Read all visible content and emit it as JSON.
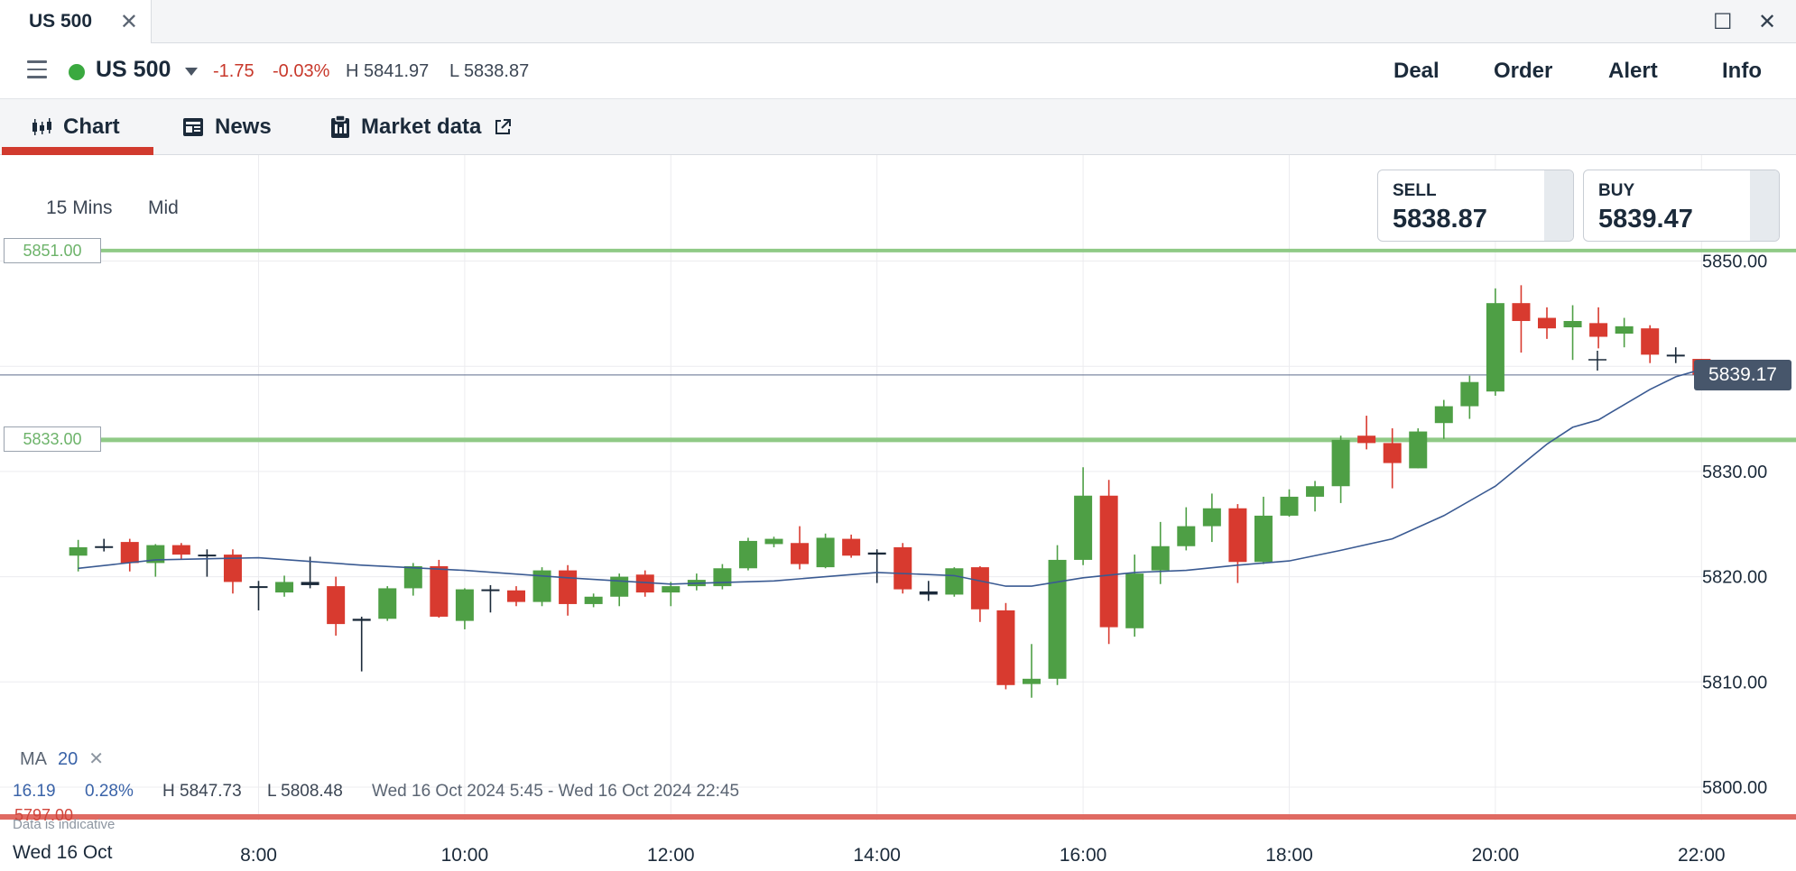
{
  "tab": {
    "title": "US 500",
    "close": "✕"
  },
  "window": {
    "maximize": "☐",
    "close": "✕"
  },
  "instrument": {
    "name": "US 500",
    "change": "-1.75",
    "change_pct": "-0.03%",
    "high": "H 5841.97",
    "low": "L 5838.87"
  },
  "actions": [
    "Deal",
    "Order",
    "Alert",
    "Info"
  ],
  "subnav": [
    {
      "label": "Chart",
      "icon": "candlestick-icon"
    },
    {
      "label": "News",
      "icon": "newspaper-icon"
    },
    {
      "label": "Market data",
      "icon": "clipboard-icon",
      "external": "external-link-icon"
    }
  ],
  "chart_controls": {
    "timeframe": "15 Mins",
    "price_type": "Mid"
  },
  "quotes": {
    "sell": {
      "label": "SELL",
      "value": "5838.87"
    },
    "buy": {
      "label": "BUY",
      "value": "5839.47"
    }
  },
  "levels": {
    "upper": "5851.00",
    "middle": "5833.00",
    "lower": "5797.00",
    "current": "5839.17"
  },
  "indicator": {
    "name": "MA",
    "period": "20",
    "remove": "✕"
  },
  "stats": {
    "points": "16.19",
    "pct": "0.28%",
    "high": "H 5847.73",
    "low": "L 5808.48",
    "range": "Wed 16 Oct 2024 5:45 - Wed 16 Oct 2024 22:45"
  },
  "disclaimer": "Data is indicative",
  "date_label": "Wed 16 Oct",
  "colors": {
    "up": "#4e9f45",
    "down": "#d83a2f",
    "ma": "#3a5a92",
    "level": "#8fca86",
    "low_level": "#e06a62",
    "accent": "#d13a2e"
  },
  "chart_data": {
    "type": "candlestick",
    "interval": "15 Mins",
    "y_ticks": [
      "5850.00",
      "5830.00",
      "5820.00",
      "5810.00",
      "5800.00"
    ],
    "y_range": [
      5795,
      5856
    ],
    "x_ticks": [
      "8:00",
      "10:00",
      "12:00",
      "14:00",
      "16:00",
      "18:00",
      "20:00",
      "22:00"
    ],
    "x_range": [
      6.25,
      23.0
    ],
    "candles": [
      {
        "t": 6.25,
        "o": 5822.0,
        "h": 5823.5,
        "l": 5820.5,
        "c": 5822.8
      },
      {
        "t": 6.5,
        "o": 5822.8,
        "h": 5823.6,
        "l": 5822.4,
        "c": 5822.9
      },
      {
        "t": 6.75,
        "o": 5823.3,
        "h": 5823.6,
        "l": 5820.5,
        "c": 5821.3
      },
      {
        "t": 7.0,
        "o": 5821.3,
        "h": 5823.1,
        "l": 5820.0,
        "c": 5823.0
      },
      {
        "t": 7.25,
        "o": 5823.0,
        "h": 5823.2,
        "l": 5821.7,
        "c": 5822.1
      },
      {
        "t": 7.5,
        "o": 5822.1,
        "h": 5822.6,
        "l": 5820.0,
        "c": 5822.1
      },
      {
        "t": 7.75,
        "o": 5822.1,
        "h": 5822.6,
        "l": 5818.4,
        "c": 5819.5
      },
      {
        "t": 8.0,
        "o": 5819.1,
        "h": 5819.6,
        "l": 5816.8,
        "c": 5819.1
      },
      {
        "t": 8.25,
        "o": 5818.5,
        "h": 5820.1,
        "l": 5818.1,
        "c": 5819.5
      },
      {
        "t": 8.5,
        "o": 5819.5,
        "h": 5821.9,
        "l": 5818.9,
        "c": 5819.2
      },
      {
        "t": 8.75,
        "o": 5819.1,
        "h": 5820.0,
        "l": 5814.4,
        "c": 5815.5
      },
      {
        "t": 9.0,
        "o": 5815.8,
        "h": 5816.2,
        "l": 5811.0,
        "c": 5816.0
      },
      {
        "t": 9.25,
        "o": 5816.0,
        "h": 5819.1,
        "l": 5815.8,
        "c": 5818.9
      },
      {
        "t": 9.5,
        "o": 5818.9,
        "h": 5821.3,
        "l": 5818.2,
        "c": 5821.0
      },
      {
        "t": 9.75,
        "o": 5821.0,
        "h": 5821.6,
        "l": 5816.1,
        "c": 5816.2
      },
      {
        "t": 10.0,
        "o": 5815.8,
        "h": 5818.9,
        "l": 5815.0,
        "c": 5818.8
      },
      {
        "t": 10.25,
        "o": 5818.8,
        "h": 5819.2,
        "l": 5816.6,
        "c": 5818.7
      },
      {
        "t": 10.5,
        "o": 5818.7,
        "h": 5819.1,
        "l": 5817.2,
        "c": 5817.6
      },
      {
        "t": 10.75,
        "o": 5817.6,
        "h": 5820.9,
        "l": 5817.2,
        "c": 5820.6
      },
      {
        "t": 11.0,
        "o": 5820.6,
        "h": 5821.1,
        "l": 5816.3,
        "c": 5817.4
      },
      {
        "t": 11.25,
        "o": 5817.4,
        "h": 5818.4,
        "l": 5817.1,
        "c": 5818.1
      },
      {
        "t": 11.5,
        "o": 5818.1,
        "h": 5820.3,
        "l": 5817.2,
        "c": 5820.0
      },
      {
        "t": 11.75,
        "o": 5820.2,
        "h": 5820.6,
        "l": 5818.1,
        "c": 5818.5
      },
      {
        "t": 12.0,
        "o": 5818.5,
        "h": 5819.5,
        "l": 5817.2,
        "c": 5819.1
      },
      {
        "t": 12.25,
        "o": 5819.1,
        "h": 5820.3,
        "l": 5818.7,
        "c": 5819.7
      },
      {
        "t": 12.5,
        "o": 5819.1,
        "h": 5821.2,
        "l": 5818.8,
        "c": 5820.8
      },
      {
        "t": 12.75,
        "o": 5820.8,
        "h": 5823.7,
        "l": 5820.6,
        "c": 5823.4
      },
      {
        "t": 13.0,
        "o": 5823.1,
        "h": 5823.8,
        "l": 5822.8,
        "c": 5823.6
      },
      {
        "t": 13.25,
        "o": 5823.2,
        "h": 5824.8,
        "l": 5820.7,
        "c": 5821.2
      },
      {
        "t": 13.5,
        "o": 5820.9,
        "h": 5824.1,
        "l": 5820.8,
        "c": 5823.7
      },
      {
        "t": 13.75,
        "o": 5823.6,
        "h": 5824.0,
        "l": 5821.8,
        "c": 5822.0
      },
      {
        "t": 14.0,
        "o": 5822.1,
        "h": 5822.6,
        "l": 5819.4,
        "c": 5822.3
      },
      {
        "t": 14.25,
        "o": 5822.8,
        "h": 5823.2,
        "l": 5818.4,
        "c": 5818.8
      },
      {
        "t": 14.5,
        "o": 5818.6,
        "h": 5819.6,
        "l": 5817.7,
        "c": 5818.3
      },
      {
        "t": 14.75,
        "o": 5818.3,
        "h": 5820.9,
        "l": 5818.1,
        "c": 5820.8
      },
      {
        "t": 15.0,
        "o": 5820.9,
        "h": 5821.0,
        "l": 5815.7,
        "c": 5816.9
      },
      {
        "t": 15.25,
        "o": 5816.8,
        "h": 5817.5,
        "l": 5809.3,
        "c": 5809.7
      },
      {
        "t": 15.5,
        "o": 5809.8,
        "h": 5813.6,
        "l": 5808.5,
        "c": 5810.3
      },
      {
        "t": 15.75,
        "o": 5810.3,
        "h": 5823.0,
        "l": 5809.7,
        "c": 5821.6
      },
      {
        "t": 16.0,
        "o": 5821.6,
        "h": 5830.4,
        "l": 5821.1,
        "c": 5827.7
      },
      {
        "t": 16.25,
        "o": 5827.7,
        "h": 5829.2,
        "l": 5813.6,
        "c": 5815.2
      },
      {
        "t": 16.5,
        "o": 5815.1,
        "h": 5822.1,
        "l": 5814.3,
        "c": 5820.3
      },
      {
        "t": 16.75,
        "o": 5820.6,
        "h": 5825.2,
        "l": 5819.3,
        "c": 5822.9
      },
      {
        "t": 17.0,
        "o": 5822.9,
        "h": 5826.6,
        "l": 5822.5,
        "c": 5824.8
      },
      {
        "t": 17.25,
        "o": 5824.8,
        "h": 5827.9,
        "l": 5823.3,
        "c": 5826.5
      },
      {
        "t": 17.5,
        "o": 5826.5,
        "h": 5826.9,
        "l": 5819.4,
        "c": 5821.4
      },
      {
        "t": 17.75,
        "o": 5821.4,
        "h": 5827.6,
        "l": 5821.2,
        "c": 5825.8
      },
      {
        "t": 18.0,
        "o": 5825.8,
        "h": 5828.3,
        "l": 5825.7,
        "c": 5827.6
      },
      {
        "t": 18.25,
        "o": 5827.6,
        "h": 5829.1,
        "l": 5826.2,
        "c": 5828.6
      },
      {
        "t": 18.5,
        "o": 5828.6,
        "h": 5833.4,
        "l": 5827.0,
        "c": 5833.0
      },
      {
        "t": 18.75,
        "o": 5833.4,
        "h": 5835.3,
        "l": 5832.1,
        "c": 5832.7
      },
      {
        "t": 19.0,
        "o": 5832.7,
        "h": 5834.1,
        "l": 5828.4,
        "c": 5830.8
      },
      {
        "t": 19.25,
        "o": 5830.3,
        "h": 5834.1,
        "l": 5830.3,
        "c": 5833.8
      },
      {
        "t": 19.5,
        "o": 5834.6,
        "h": 5836.8,
        "l": 5833.1,
        "c": 5836.2
      },
      {
        "t": 19.75,
        "o": 5836.2,
        "h": 5839.1,
        "l": 5835.0,
        "c": 5838.5
      },
      {
        "t": 20.0,
        "o": 5837.6,
        "h": 5847.4,
        "l": 5837.2,
        "c": 5846.0
      },
      {
        "t": 20.25,
        "o": 5846.0,
        "h": 5847.7,
        "l": 5841.3,
        "c": 5844.3
      },
      {
        "t": 20.5,
        "o": 5844.6,
        "h": 5845.6,
        "l": 5842.6,
        "c": 5843.6
      },
      {
        "t": 20.75,
        "o": 5843.7,
        "h": 5845.8,
        "l": 5840.6,
        "c": 5844.3
      },
      {
        "t": 21.0,
        "o": 5844.1,
        "h": 5845.6,
        "l": 5841.7,
        "c": 5842.8
      },
      {
        "t": 21.25,
        "o": 5843.1,
        "h": 5844.6,
        "l": 5841.8,
        "c": 5843.8
      },
      {
        "t": 21.5,
        "o": 5843.6,
        "h": 5843.9,
        "l": 5840.3,
        "c": 5841.1
      },
      {
        "t": 21.75,
        "o": 5841.1,
        "h": 5841.8,
        "l": 5840.3,
        "c": 5841.1
      },
      {
        "t": 22.0,
        "o": 5840.7,
        "h": 5840.7,
        "l": 5839.2,
        "c": 5839.2
      }
    ],
    "ma": {
      "period": 20,
      "x": [
        6.25,
        7.0,
        8.0,
        9.0,
        10.0,
        11.0,
        12.0,
        13.0,
        14.0,
        14.75,
        15.25,
        15.5,
        16.0,
        16.5,
        17.0,
        17.5,
        18.0,
        18.5,
        19.0,
        19.5,
        20.0,
        20.5,
        20.75,
        21.0,
        21.5,
        21.75,
        22.0
      ],
      "y": [
        5820.8,
        5821.6,
        5821.8,
        5821.1,
        5820.6,
        5819.9,
        5819.3,
        5819.6,
        5820.4,
        5820.1,
        5819.1,
        5819.1,
        5819.9,
        5820.4,
        5820.6,
        5821.1,
        5821.5,
        5822.5,
        5823.6,
        5825.8,
        5828.6,
        5832.6,
        5834.2,
        5834.9,
        5837.8,
        5839.0,
        5839.7
      ]
    }
  }
}
